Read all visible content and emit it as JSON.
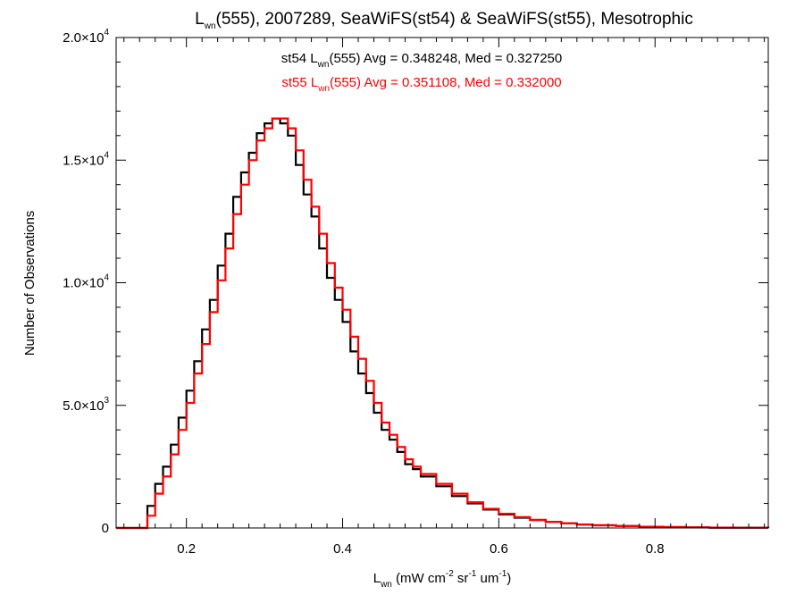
{
  "chart_data": {
    "type": "line",
    "title": {
      "prefix": "L",
      "sub": "wn",
      "suffix": "(555), 2007289, SeaWiFS(st54) & SeaWiFS(st55), Mesotrophic"
    },
    "xlabel": {
      "prefix": "L",
      "sub": "wn",
      "unit_parts": [
        {
          "t": " (mW cm",
          "s": "-2"
        },
        {
          "t": " sr",
          "s": "-1"
        },
        {
          "t": " um",
          "s": "-1"
        },
        {
          "t": ")",
          "s": ""
        }
      ]
    },
    "ylabel": "Number of Observations",
    "xlim": [
      0.11,
      0.945
    ],
    "ylim": [
      0,
      20000
    ],
    "x_ticks": [
      {
        "value": 0.2,
        "label": "0.2"
      },
      {
        "value": 0.4,
        "label": "0.4"
      },
      {
        "value": 0.6,
        "label": "0.6"
      },
      {
        "value": 0.8,
        "label": "0.8"
      }
    ],
    "y_ticks": [
      {
        "value": 0,
        "mant": "0",
        "exp": ""
      },
      {
        "value": 5000,
        "mant": "5.0×10",
        "exp": "3"
      },
      {
        "value": 10000,
        "mant": "1.0×10",
        "exp": "4"
      },
      {
        "value": 15000,
        "mant": "1.5×10",
        "exp": "4"
      },
      {
        "value": 20000,
        "mant": "2.0×10",
        "exp": "4"
      }
    ],
    "series": [
      {
        "name": "st54",
        "color": "#000000",
        "legend": {
          "pre": "st54 L",
          "sub": "wn",
          "post": "(555) Avg = 0.348248, Med = 0.327250"
        },
        "x": [
          0.11,
          0.15,
          0.16,
          0.17,
          0.18,
          0.19,
          0.2,
          0.21,
          0.22,
          0.23,
          0.24,
          0.25,
          0.26,
          0.27,
          0.28,
          0.29,
          0.3,
          0.31,
          0.32,
          0.33,
          0.34,
          0.35,
          0.36,
          0.37,
          0.38,
          0.39,
          0.4,
          0.41,
          0.42,
          0.43,
          0.44,
          0.45,
          0.46,
          0.47,
          0.48,
          0.49,
          0.5,
          0.52,
          0.54,
          0.56,
          0.58,
          0.6,
          0.62,
          0.64,
          0.66,
          0.68,
          0.7,
          0.72,
          0.75,
          0.78,
          0.81,
          0.84,
          0.87,
          0.9,
          0.945
        ],
        "y": [
          0,
          900,
          1800,
          2500,
          3400,
          4500,
          5600,
          6800,
          8100,
          9300,
          10700,
          12000,
          13500,
          14500,
          15300,
          16100,
          16500,
          16700,
          16500,
          16000,
          14800,
          13600,
          12700,
          11400,
          10200,
          9300,
          8400,
          7200,
          6300,
          5500,
          4700,
          4000,
          3600,
          3100,
          2600,
          2400,
          2100,
          1700,
          1300,
          1000,
          750,
          550,
          420,
          320,
          250,
          190,
          140,
          110,
          75,
          50,
          35,
          25,
          15,
          10,
          5
        ]
      },
      {
        "name": "st55",
        "color": "#ff0000",
        "legend": {
          "pre": "st55 L",
          "sub": "wn",
          "post": "(555) Avg = 0.351108, Med = 0.332000"
        },
        "x": [
          0.11,
          0.15,
          0.16,
          0.17,
          0.18,
          0.19,
          0.2,
          0.21,
          0.22,
          0.23,
          0.24,
          0.25,
          0.26,
          0.27,
          0.28,
          0.29,
          0.3,
          0.31,
          0.32,
          0.33,
          0.34,
          0.35,
          0.36,
          0.37,
          0.38,
          0.39,
          0.4,
          0.41,
          0.42,
          0.43,
          0.44,
          0.45,
          0.46,
          0.47,
          0.48,
          0.49,
          0.5,
          0.52,
          0.54,
          0.56,
          0.58,
          0.6,
          0.62,
          0.64,
          0.66,
          0.68,
          0.7,
          0.72,
          0.75,
          0.78,
          0.81,
          0.84,
          0.87,
          0.9,
          0.945
        ],
        "y": [
          0,
          500,
          1400,
          2100,
          3000,
          4000,
          5100,
          6300,
          7500,
          8800,
          10100,
          11400,
          12800,
          14000,
          15000,
          15800,
          16300,
          16700,
          16700,
          16300,
          15400,
          14200,
          13100,
          12000,
          10800,
          9800,
          8900,
          7800,
          6900,
          6000,
          5100,
          4300,
          3800,
          3300,
          2800,
          2500,
          2200,
          1800,
          1400,
          1050,
          780,
          580,
          440,
          330,
          250,
          190,
          140,
          110,
          75,
          50,
          35,
          25,
          15,
          10,
          5
        ]
      }
    ],
    "grid": false,
    "legend_position": "top-center"
  }
}
